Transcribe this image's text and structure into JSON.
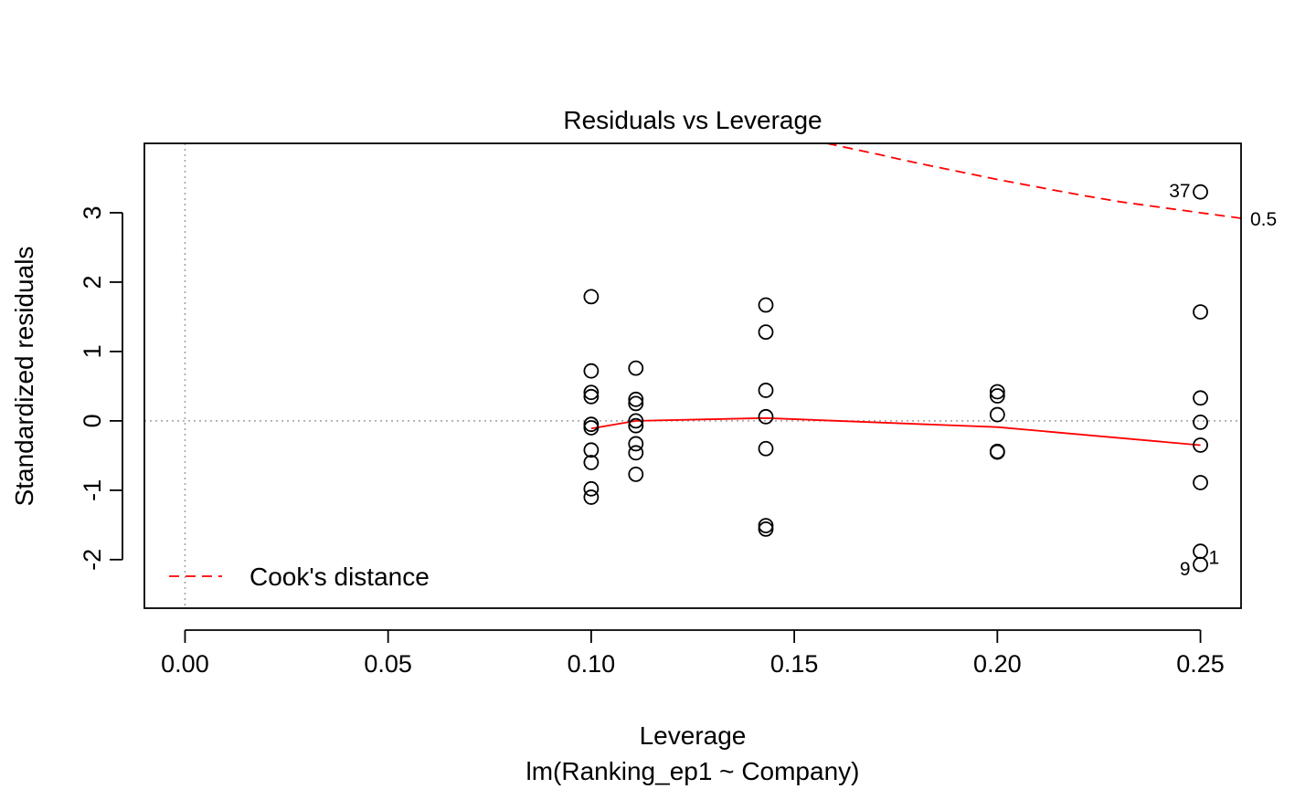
{
  "chart_data": {
    "type": "scatter",
    "title": "Residuals vs Leverage",
    "xlabel": "Leverage",
    "subtitle": "lm(Ranking_ep1 ~ Company)",
    "ylabel": "Standardized residuals",
    "xlim": [
      -0.01,
      0.26
    ],
    "ylim": [
      -2.7,
      4.0
    ],
    "xticks": [
      "0.00",
      "0.05",
      "0.10",
      "0.15",
      "0.20",
      "0.25"
    ],
    "xtick_values": [
      0.0,
      0.05,
      0.1,
      0.15,
      0.2,
      0.25
    ],
    "yticks": [
      "-2",
      "-1",
      "0",
      "1",
      "2",
      "3"
    ],
    "ytick_values": [
      -2,
      -1,
      0,
      1,
      2,
      3
    ],
    "points": [
      {
        "x": 0.1,
        "y": 1.79
      },
      {
        "x": 0.1,
        "y": 0.72
      },
      {
        "x": 0.1,
        "y": 0.41
      },
      {
        "x": 0.1,
        "y": 0.35
      },
      {
        "x": 0.1,
        "y": -0.05
      },
      {
        "x": 0.1,
        "y": -0.1
      },
      {
        "x": 0.1,
        "y": -0.42
      },
      {
        "x": 0.1,
        "y": -0.6
      },
      {
        "x": 0.1,
        "y": -0.98
      },
      {
        "x": 0.1,
        "y": -1.1
      },
      {
        "x": 0.111,
        "y": 0.76
      },
      {
        "x": 0.111,
        "y": 0.31
      },
      {
        "x": 0.111,
        "y": 0.25
      },
      {
        "x": 0.111,
        "y": 0.0
      },
      {
        "x": 0.111,
        "y": -0.07
      },
      {
        "x": 0.111,
        "y": -0.33
      },
      {
        "x": 0.111,
        "y": -0.46
      },
      {
        "x": 0.111,
        "y": -0.77
      },
      {
        "x": 0.143,
        "y": 1.67
      },
      {
        "x": 0.143,
        "y": 1.28
      },
      {
        "x": 0.143,
        "y": 0.44
      },
      {
        "x": 0.143,
        "y": 0.06
      },
      {
        "x": 0.143,
        "y": -0.4
      },
      {
        "x": 0.143,
        "y": -1.51
      },
      {
        "x": 0.143,
        "y": -1.56
      },
      {
        "x": 0.2,
        "y": 0.42
      },
      {
        "x": 0.2,
        "y": 0.36
      },
      {
        "x": 0.2,
        "y": 0.09
      },
      {
        "x": 0.2,
        "y": -0.44
      },
      {
        "x": 0.2,
        "y": -0.45
      },
      {
        "x": 0.25,
        "y": 3.3,
        "label": "37"
      },
      {
        "x": 0.25,
        "y": 1.57
      },
      {
        "x": 0.25,
        "y": 0.33
      },
      {
        "x": 0.25,
        "y": -0.02
      },
      {
        "x": 0.25,
        "y": -0.35
      },
      {
        "x": 0.25,
        "y": -0.89
      },
      {
        "x": 0.25,
        "y": -1.88,
        "label": "1"
      },
      {
        "x": 0.25,
        "y": -2.07,
        "label": "9"
      }
    ],
    "smooth_line": [
      {
        "x": 0.1,
        "y": -0.11
      },
      {
        "x": 0.111,
        "y": 0.0
      },
      {
        "x": 0.143,
        "y": 0.04
      },
      {
        "x": 0.2,
        "y": -0.09
      },
      {
        "x": 0.25,
        "y": -0.35
      }
    ],
    "cooks_contour": {
      "level_label": "0.5",
      "points": [
        {
          "x": 0.158,
          "y": 4.0
        },
        {
          "x": 0.17,
          "y": 3.85
        },
        {
          "x": 0.18,
          "y": 3.72
        },
        {
          "x": 0.19,
          "y": 3.6
        },
        {
          "x": 0.2,
          "y": 3.48
        },
        {
          "x": 0.21,
          "y": 3.37
        },
        {
          "x": 0.22,
          "y": 3.26
        },
        {
          "x": 0.23,
          "y": 3.16
        },
        {
          "x": 0.24,
          "y": 3.08
        },
        {
          "x": 0.25,
          "y": 3.0
        },
        {
          "x": 0.26,
          "y": 2.92
        }
      ]
    },
    "legend": {
      "placement": "bottom-left",
      "entries": [
        {
          "label": "Cook's distance"
        }
      ]
    },
    "colors": {
      "points": "#000000",
      "smooth": "#ff0000",
      "cooks": "#ff0000",
      "reference": "#9e9e9e"
    }
  }
}
